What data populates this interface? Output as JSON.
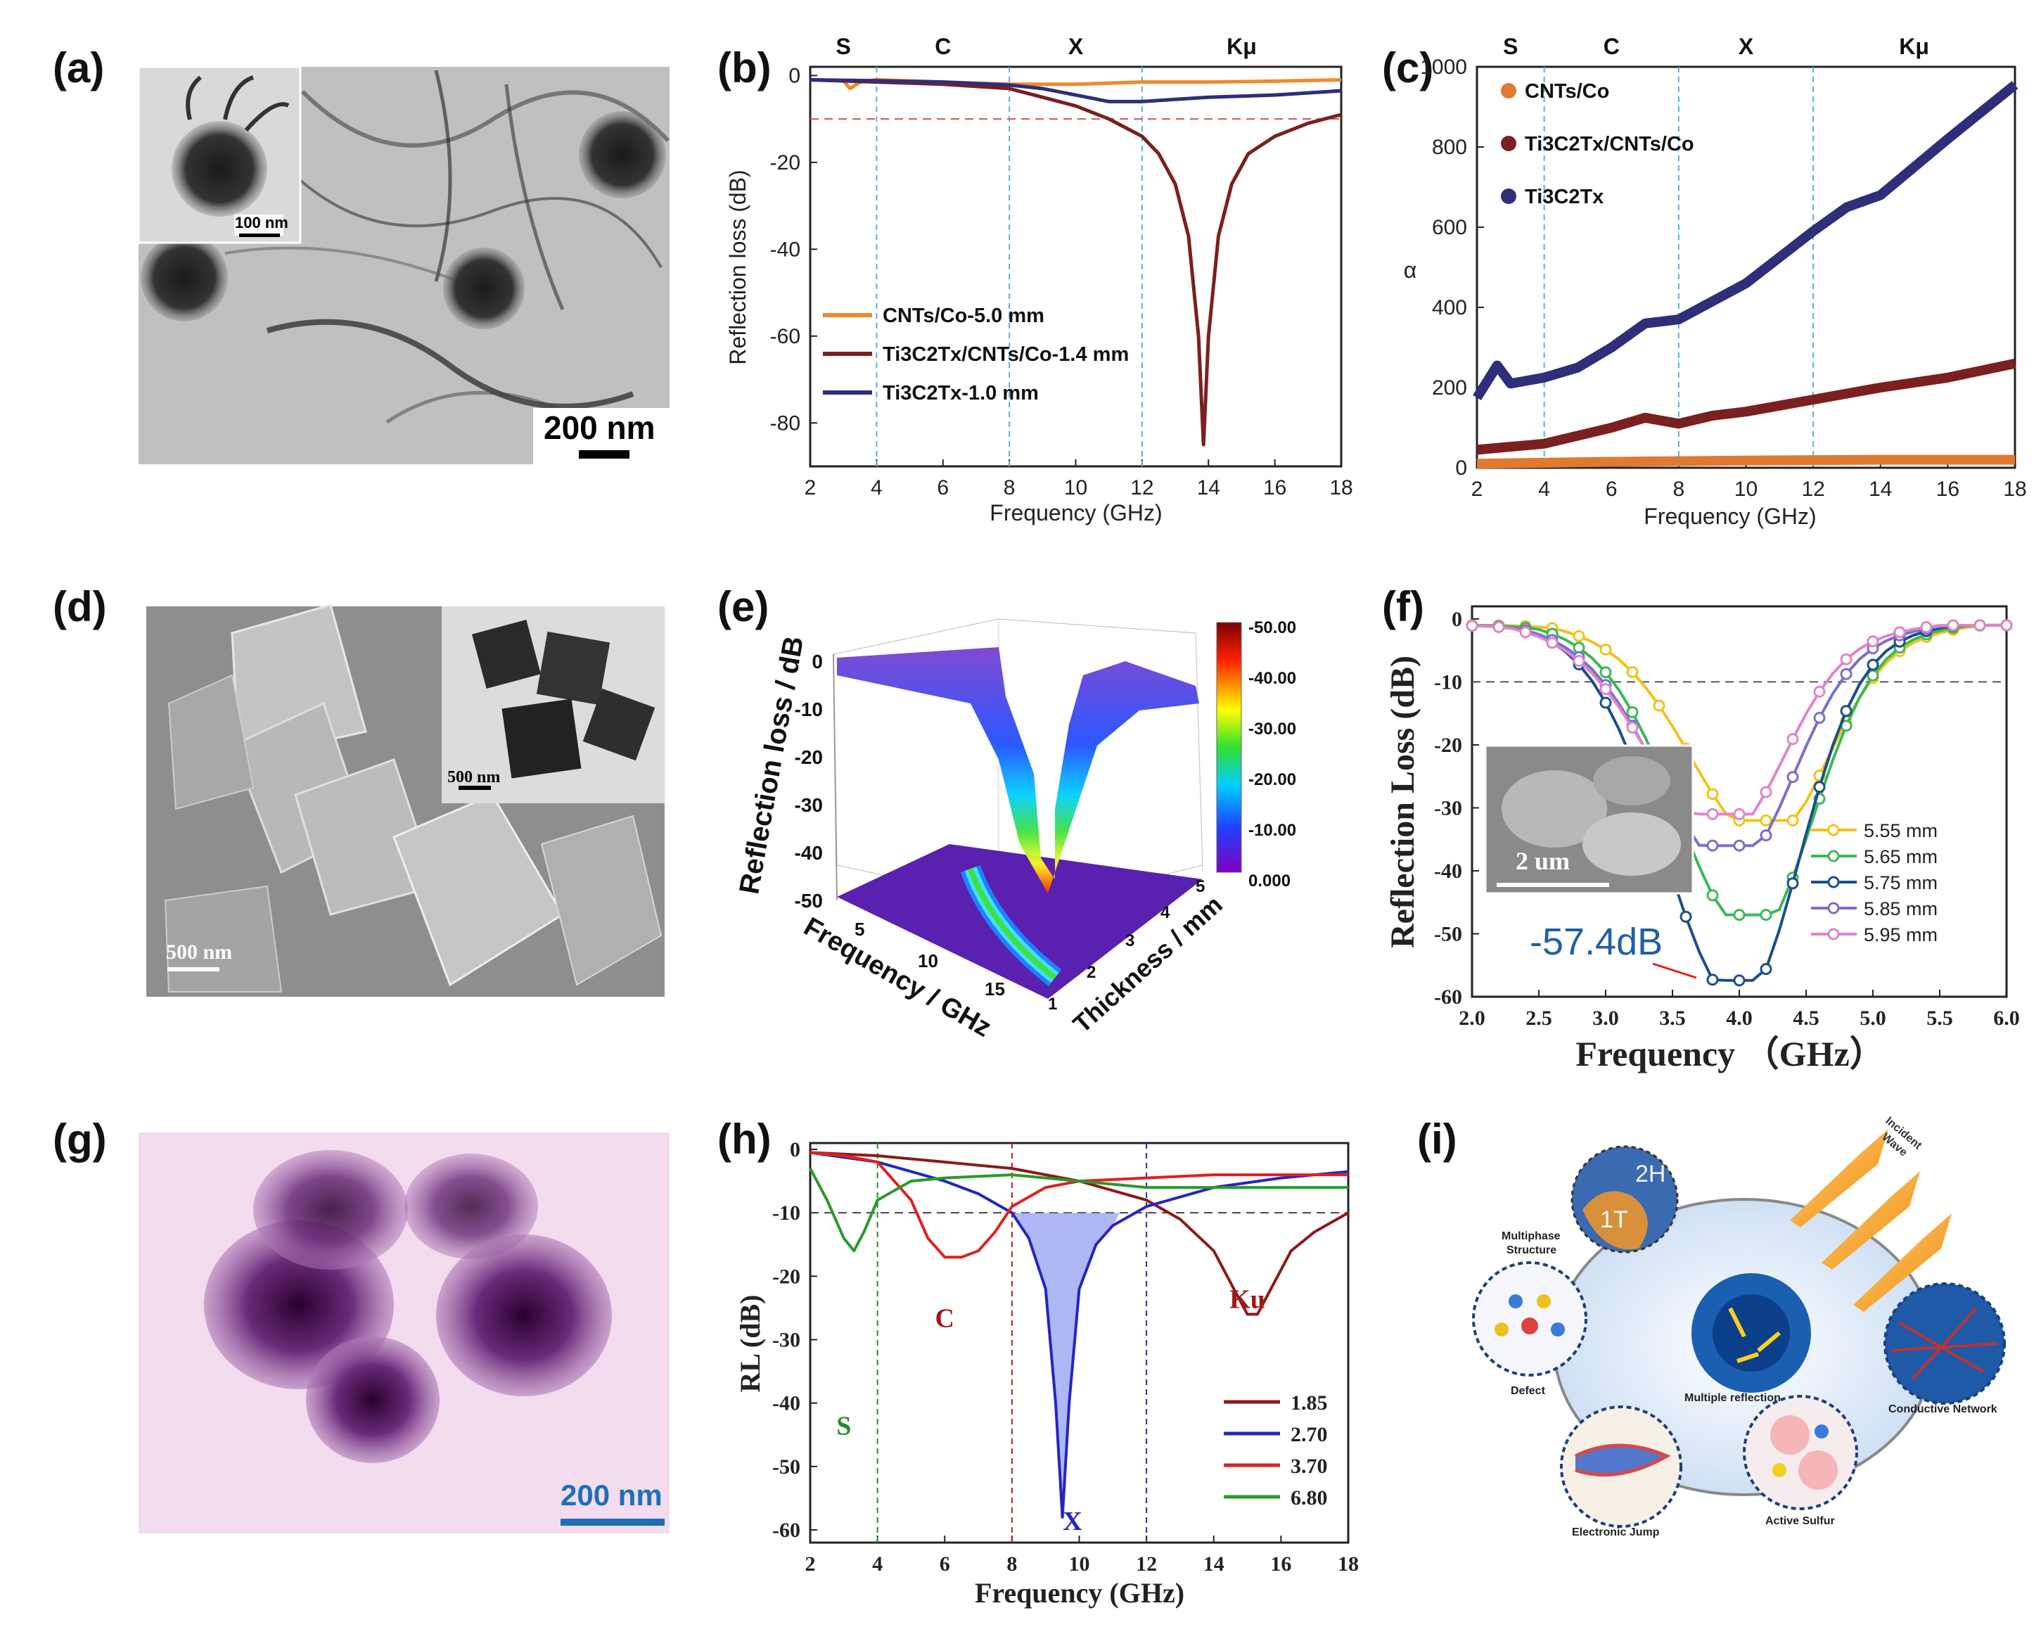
{
  "panels": {
    "a": {
      "label": "(a)",
      "inset_scale": "100 nm",
      "scale": "200 nm"
    },
    "d": {
      "label": "(d)",
      "inset_scale": "500 nm",
      "scale": "500 nm"
    },
    "g": {
      "label": "(g)",
      "scale": "200 nm"
    },
    "i": {
      "label": "(i)",
      "texts": {
        "h2": "2H",
        "t1": "1T",
        "incident": "Incident",
        "wave": "Wave",
        "multiphase": "Multiphase",
        "structure": "Structure",
        "defect": "Defect",
        "multiple": "Multiple reflection",
        "conductive": "Conductive Network",
        "electronic": "Electronic Jump",
        "sulfur": "Active Sulfur"
      }
    }
  },
  "chart_data": [
    {
      "id": "b",
      "label": "(b)",
      "type": "line",
      "xlabel": "Frequency (GHz)",
      "ylabel": "Reflection loss (dB)",
      "xlim": [
        2,
        18
      ],
      "ylim": [
        -90,
        2
      ],
      "xticks": [
        2,
        4,
        6,
        8,
        10,
        12,
        14,
        16,
        18
      ],
      "yticks": [
        0,
        -20,
        -40,
        -60,
        -80
      ],
      "bands": [
        "S",
        "C",
        "X",
        "Kμ"
      ],
      "band_x": [
        3,
        6,
        10,
        15
      ],
      "vlines": [
        4,
        8,
        12
      ],
      "hline": -10,
      "series": [
        {
          "name": "CNTs/Co-5.0 mm",
          "color": "#f08a2a",
          "x": [
            2,
            3,
            3.2,
            3.5,
            4,
            6,
            8,
            10,
            12,
            14,
            16,
            18
          ],
          "y": [
            -1,
            -1.2,
            -3,
            -1.5,
            -1,
            -1.5,
            -2,
            -2,
            -1.5,
            -1.5,
            -1.3,
            -1
          ]
        },
        {
          "name": "Ti3C2Tx/CNTs/Co-1.4 mm",
          "color": "#7a2020",
          "x": [
            2,
            4,
            6,
            8,
            9,
            10,
            11,
            12,
            12.5,
            13,
            13.4,
            13.7,
            13.85,
            14,
            14.3,
            14.7,
            15.2,
            16,
            17,
            18
          ],
          "y": [
            -1,
            -1.5,
            -2,
            -3,
            -5,
            -7,
            -10,
            -14,
            -18,
            -25,
            -37,
            -60,
            -85,
            -60,
            -37,
            -25,
            -18,
            -14,
            -11,
            -9
          ]
        },
        {
          "name": "Ti3C2Tx-1.0 mm",
          "color": "#2e2e7a",
          "x": [
            2,
            4,
            6,
            8,
            9,
            10,
            11,
            12,
            13,
            14,
            16,
            18
          ],
          "y": [
            -1,
            -1.2,
            -1.5,
            -2.2,
            -3,
            -4.5,
            -6,
            -6,
            -5.5,
            -5,
            -4.5,
            -3.5
          ]
        }
      ]
    },
    {
      "id": "c",
      "label": "(c)",
      "type": "line",
      "xlabel": "Frequency (GHz)",
      "ylabel": "α",
      "xlim": [
        2,
        18
      ],
      "ylim": [
        0,
        1000
      ],
      "xticks": [
        2,
        4,
        6,
        8,
        10,
        12,
        14,
        16,
        18
      ],
      "yticks": [
        0,
        200,
        400,
        600,
        800,
        1000
      ],
      "bands": [
        "S",
        "C",
        "X",
        "Kμ"
      ],
      "band_x": [
        3,
        6,
        10,
        15
      ],
      "vlines": [
        4,
        8,
        12
      ],
      "series": [
        {
          "name": "CNTs/Co",
          "color": "#e07a30",
          "x": [
            2,
            6,
            10,
            14,
            18
          ],
          "y": [
            10,
            15,
            18,
            20,
            20
          ]
        },
        {
          "name": "Ti3C2Tx/CNTs/Co",
          "color": "#7a2020",
          "x": [
            2,
            4,
            6,
            7,
            8,
            9,
            10,
            12,
            14,
            16,
            18
          ],
          "y": [
            45,
            60,
            100,
            125,
            110,
            130,
            140,
            170,
            200,
            225,
            260
          ]
        },
        {
          "name": "Ti3C2Tx",
          "color": "#2e2e7a",
          "x": [
            2,
            2.6,
            3,
            4,
            5,
            6,
            7,
            8,
            10,
            12,
            13,
            14,
            16,
            18
          ],
          "y": [
            175,
            255,
            210,
            225,
            250,
            300,
            360,
            370,
            460,
            590,
            650,
            680,
            820,
            955
          ]
        }
      ]
    },
    {
      "id": "e",
      "label": "(e)",
      "type": "surface3d",
      "xlabel": "Frequency / GHz",
      "ylabel": "Reflection loss / dB",
      "zlabel": "Thickness / mm",
      "zticks": [
        0,
        -10,
        -20,
        -30,
        -40,
        -50
      ],
      "xticks": [
        5,
        10,
        15
      ],
      "tticks": [
        1,
        2,
        3,
        4,
        5
      ],
      "colorbar": [
        "-50.00",
        "-40.00",
        "-30.00",
        "-20.00",
        "-10.00",
        "0.000"
      ]
    },
    {
      "id": "f",
      "label": "(f)",
      "type": "line",
      "xlabel": "Frequency （GHz）",
      "ylabel": "Reflection Loss (dB)",
      "xlim": [
        2,
        6
      ],
      "ylim": [
        -60,
        2
      ],
      "xticks": [
        "2.0",
        "2.5",
        "3.0",
        "3.5",
        "4.0",
        "4.5",
        "5.0",
        "5.5",
        "6.0"
      ],
      "yticks": [
        0,
        -10,
        -20,
        -30,
        -40,
        -50,
        -60
      ],
      "hline": -10,
      "annotation": "-57.4dB",
      "inset_scale": "2 um",
      "series": [
        {
          "name": "5.55 mm",
          "color": "#f2c21a",
          "min_x": 4.2,
          "min_y": -32
        },
        {
          "name": "5.65 mm",
          "color": "#3cb85a",
          "min_x": 4.1,
          "min_y": -47
        },
        {
          "name": "5.75 mm",
          "color": "#1b4f8a",
          "min_x": 4.0,
          "min_y": -57.4
        },
        {
          "name": "5.85 mm",
          "color": "#7a6fc8",
          "min_x": 3.95,
          "min_y": -36
        },
        {
          "name": "5.95 mm",
          "color": "#e085c8",
          "min_x": 3.88,
          "min_y": -31
        }
      ]
    },
    {
      "id": "h",
      "label": "(h)",
      "type": "line",
      "xlabel": "Frequency (GHz)",
      "ylabel": "RL (dB)",
      "xlim": [
        2,
        18
      ],
      "ylim": [
        -62,
        1
      ],
      "xticks": [
        2,
        4,
        6,
        8,
        10,
        12,
        14,
        16,
        18
      ],
      "yticks": [
        0,
        -10,
        -20,
        -30,
        -40,
        -50,
        -60
      ],
      "hline": -10,
      "vlines": [
        4,
        8,
        12
      ],
      "vline_colors": [
        "#2a8a2a",
        "#b22222",
        "#2a2ab0"
      ],
      "band_labels": [
        "S",
        "C",
        "X",
        "Ku"
      ],
      "series": [
        {
          "name": "1.85",
          "color": "#8b1a1a",
          "x": [
            2,
            4,
            6,
            8,
            10,
            12,
            13,
            14,
            14.6,
            15,
            15.3,
            15.7,
            16.3,
            17,
            18
          ],
          "y": [
            -0.5,
            -1,
            -2,
            -3,
            -5,
            -8,
            -11,
            -16,
            -22,
            -26,
            -26,
            -22,
            -16,
            -13,
            -10
          ]
        },
        {
          "name": "2.70",
          "color": "#2525c0",
          "x": [
            2,
            4,
            6,
            7,
            8,
            8.5,
            9,
            9.3,
            9.5,
            9.7,
            10,
            10.5,
            11,
            12,
            14,
            16,
            18
          ],
          "y": [
            -0.5,
            -2,
            -5,
            -7,
            -10,
            -14,
            -22,
            -40,
            -58,
            -40,
            -22,
            -15,
            -12,
            -9,
            -6,
            -4.5,
            -3.5
          ]
        },
        {
          "name": "3.70",
          "color": "#e02020",
          "x": [
            2,
            3,
            4,
            5,
            5.5,
            6,
            6.5,
            7,
            7.5,
            8,
            9,
            10,
            12,
            14,
            16,
            18
          ],
          "y": [
            -0.5,
            -1,
            -2,
            -8,
            -14,
            -17,
            -17,
            -16,
            -13,
            -9,
            -6,
            -5,
            -4.5,
            -4,
            -4,
            -4
          ]
        },
        {
          "name": "6.80",
          "color": "#2a9a2a",
          "x": [
            2,
            2.5,
            3,
            3.3,
            3.6,
            4,
            5,
            6,
            8,
            10,
            12,
            14,
            16,
            18
          ],
          "y": [
            -3,
            -8,
            -14,
            -16,
            -13,
            -8,
            -5,
            -4.5,
            -4,
            -5,
            -6,
            -6,
            -6,
            -6
          ]
        }
      ]
    }
  ]
}
